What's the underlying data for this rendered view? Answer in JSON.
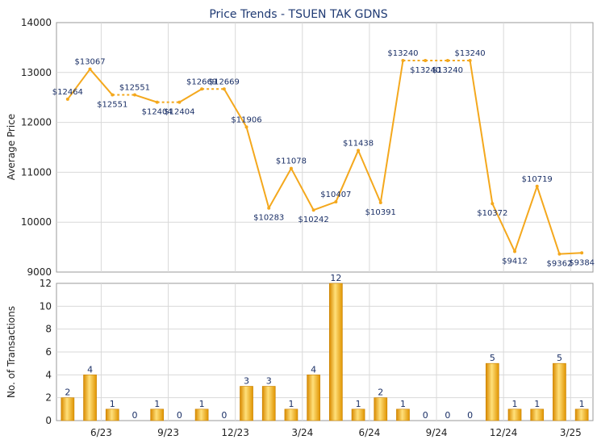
{
  "chart_data": [
    {
      "type": "line",
      "title": "Price Trends - TSUEN TAK GDNS",
      "ylabel": "Average Price",
      "ylim": [
        9000,
        14000
      ],
      "yticks": [
        "9000",
        "10000",
        "11000",
        "12000",
        "13000",
        "14000"
      ],
      "grid": true,
      "color": "#f4a81d",
      "points": [
        {
          "x": 0,
          "y": 12464,
          "label": "$12464"
        },
        {
          "x": 1,
          "y": 13067,
          "label": "$13067"
        },
        {
          "x": 2,
          "y": 12551,
          "label": "$12551"
        },
        {
          "x": 3,
          "y": 12551,
          "label": "$12551"
        },
        {
          "x": 4,
          "y": 12404,
          "label": "$12404"
        },
        {
          "x": 5,
          "y": 12404,
          "label": "$12404"
        },
        {
          "x": 6,
          "y": 12669,
          "label": "$12669"
        },
        {
          "x": 7,
          "y": 12669,
          "label": "$12669"
        },
        {
          "x": 8,
          "y": 11906,
          "label": "$11906"
        },
        {
          "x": 9,
          "y": 10283,
          "label": "$10283"
        },
        {
          "x": 10,
          "y": 11078,
          "label": "$11078"
        },
        {
          "x": 11,
          "y": 10242,
          "label": "$10242"
        },
        {
          "x": 12,
          "y": 10407,
          "label": "$10407"
        },
        {
          "x": 13,
          "y": 11438,
          "label": "$11438"
        },
        {
          "x": 14,
          "y": 10391,
          "label": "$10391"
        },
        {
          "x": 15,
          "y": 13240,
          "label": "$13240"
        },
        {
          "x": 16,
          "y": 13240,
          "label": "$13240"
        },
        {
          "x": 17,
          "y": 13240,
          "label": "$13240"
        },
        {
          "x": 18,
          "y": 13240,
          "label": "$13240"
        },
        {
          "x": 19,
          "y": 10372,
          "label": "$10372"
        },
        {
          "x": 20,
          "y": 9412,
          "label": "$9412"
        },
        {
          "x": 21,
          "y": 10719,
          "label": "$10719"
        },
        {
          "x": 22,
          "y": 9362,
          "label": "$9362"
        },
        {
          "x": 23,
          "y": 9384,
          "label": "$9384"
        }
      ],
      "dashed_segments": [
        [
          2,
          3
        ],
        [
          4,
          5
        ],
        [
          6,
          7
        ],
        [
          15,
          16
        ],
        [
          16,
          17
        ],
        [
          17,
          18
        ]
      ]
    },
    {
      "type": "bar",
      "ylabel": "No. of Transactions",
      "ylim": [
        0,
        12
      ],
      "yticks": [
        "0",
        "2",
        "4",
        "6",
        "8",
        "10",
        "12"
      ],
      "grid": true,
      "color": "#f4a81d",
      "values": [
        2,
        4,
        1,
        0,
        1,
        0,
        1,
        0,
        3,
        3,
        1,
        4,
        12,
        1,
        2,
        1,
        0,
        0,
        0,
        5,
        1,
        1,
        5,
        1
      ],
      "xtick_labels": [
        {
          "after_index": 1,
          "label": "6/23"
        },
        {
          "after_index": 4,
          "label": "9/23"
        },
        {
          "after_index": 7,
          "label": "12/23"
        },
        {
          "after_index": 10,
          "label": "3/24"
        },
        {
          "after_index": 13,
          "label": "6/24"
        },
        {
          "after_index": 16,
          "label": "9/24"
        },
        {
          "after_index": 19,
          "label": "12/24"
        },
        {
          "after_index": 22,
          "label": "3/25"
        }
      ]
    }
  ]
}
